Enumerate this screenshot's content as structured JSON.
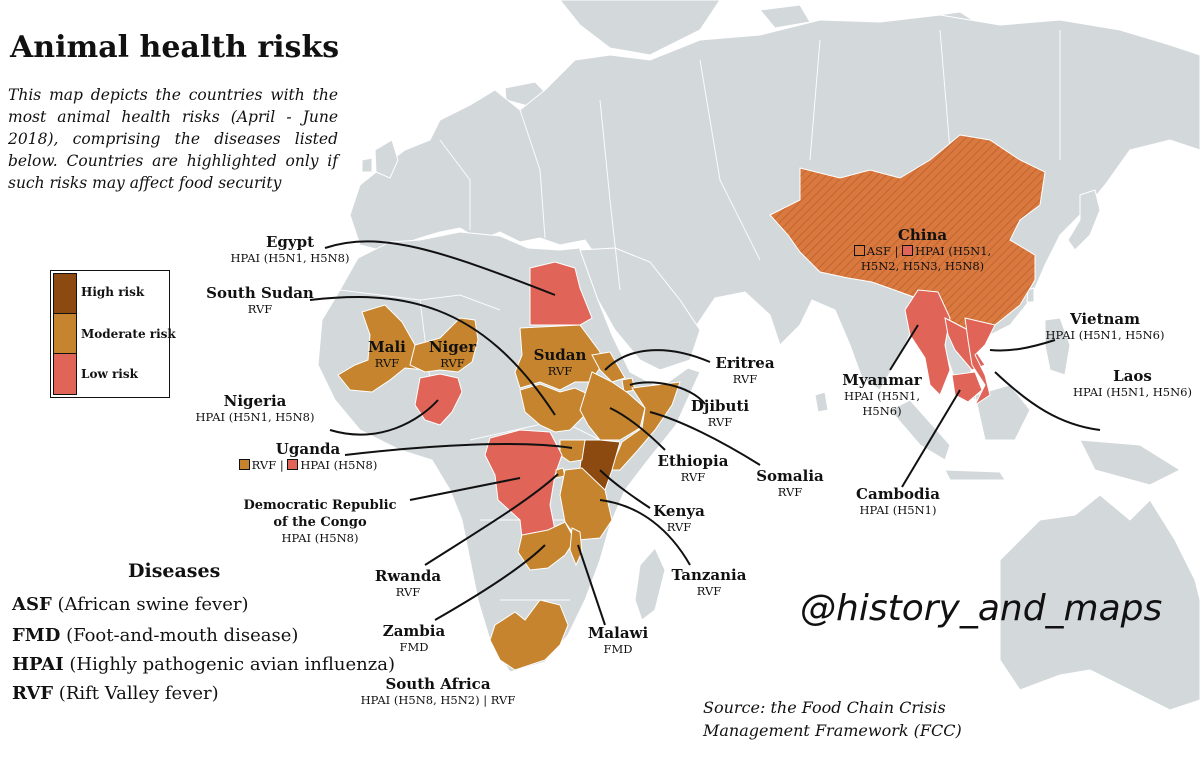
{
  "title": "Animal health risks",
  "description": "This map depicts the countries with the most animal health risks (April - June 2018), comprising the diseases listed below. Countries are highlighted only if such risks may affect food security",
  "legend": {
    "high": "High risk",
    "moderate": "Moderate risk",
    "low": "Low risk"
  },
  "colors": {
    "ocean": "#ffffff",
    "land": "#d3d8db",
    "high": "#8c4a10",
    "moderate": "#c5842d",
    "low": "#e06458",
    "china": "#d9793f"
  },
  "countries": {
    "egypt": {
      "name": "Egypt",
      "diseases": "HPAI (H5N1, H5N8)",
      "risk": "low"
    },
    "south_sudan": {
      "name": "South Sudan",
      "diseases": "RVF",
      "risk": "moderate"
    },
    "mali": {
      "name": "Mali",
      "diseases": "RVF",
      "risk": "moderate"
    },
    "niger": {
      "name": "Niger",
      "diseases": "RVF",
      "risk": "moderate"
    },
    "sudan": {
      "name": "Sudan",
      "diseases": "RVF",
      "risk": "moderate"
    },
    "nigeria": {
      "name": "Nigeria",
      "diseases": "HPAI (H5N1, H5N8)",
      "risk": "low"
    },
    "uganda": {
      "name": "Uganda",
      "d1": "RVF",
      "sep": "|",
      "d2": "HPAI (H5N8)"
    },
    "drc": {
      "name1": "Democratic Republic",
      "name2": "of the Congo",
      "diseases": "HPAI (H5N8)",
      "risk": "low"
    },
    "eritrea": {
      "name": "Eritrea",
      "diseases": "RVF",
      "risk": "moderate"
    },
    "djibuti": {
      "name": "Djibuti",
      "diseases": "RVF",
      "risk": "moderate"
    },
    "ethiopia": {
      "name": "Ethiopia",
      "diseases": "RVF",
      "risk": "moderate"
    },
    "somalia": {
      "name": "Somalia",
      "diseases": "RVF",
      "risk": "moderate"
    },
    "kenya": {
      "name": "Kenya",
      "diseases": "RVF",
      "risk": "high"
    },
    "rwanda": {
      "name": "Rwanda",
      "diseases": "RVF",
      "risk": "moderate"
    },
    "tanzania": {
      "name": "Tanzania",
      "diseases": "RVF",
      "risk": "moderate"
    },
    "zambia": {
      "name": "Zambia",
      "diseases": "FMD",
      "risk": "moderate"
    },
    "malawi": {
      "name": "Malawi",
      "diseases": "FMD",
      "risk": "moderate"
    },
    "south_africa": {
      "name": "South Africa",
      "diseases": "HPAI (H5N8, H5N2) | RVF",
      "risk": "moderate"
    },
    "china": {
      "name": "China",
      "d1": "ASF",
      "sep": "|",
      "d2a": "HPAI (H5N1,",
      "d2b": "H5N2, H5N3, H5N8)"
    },
    "vietnam": {
      "name": "Vietnam",
      "diseases": "HPAI (H5N1, H5N6)",
      "risk": "low"
    },
    "laos": {
      "name": "Laos",
      "diseases": "HPAI (H5N1, H5N6)",
      "risk": "low"
    },
    "myanmar": {
      "name": "Myanmar",
      "d1": "HPAI (H5N1,",
      "d2": "H5N6)",
      "risk": "low"
    },
    "cambodia": {
      "name": "Cambodia",
      "diseases": "HPAI (H5N1)",
      "risk": "low"
    }
  },
  "diseases": {
    "title": "Diseases",
    "items": [
      {
        "code": "ASF",
        "name": "(African swine fever)"
      },
      {
        "code": "FMD",
        "name": "(Foot-and-mouth disease)"
      },
      {
        "code": "HPAI",
        "name": "(Highly pathogenic avian influenza)"
      },
      {
        "code": "RVF",
        "name": "(Rift Valley fever)"
      }
    ]
  },
  "handle": "@history_and_maps",
  "source_line1": "Source:  the Food Chain Crisis",
  "source_line2": "Management Framework (FCC)"
}
